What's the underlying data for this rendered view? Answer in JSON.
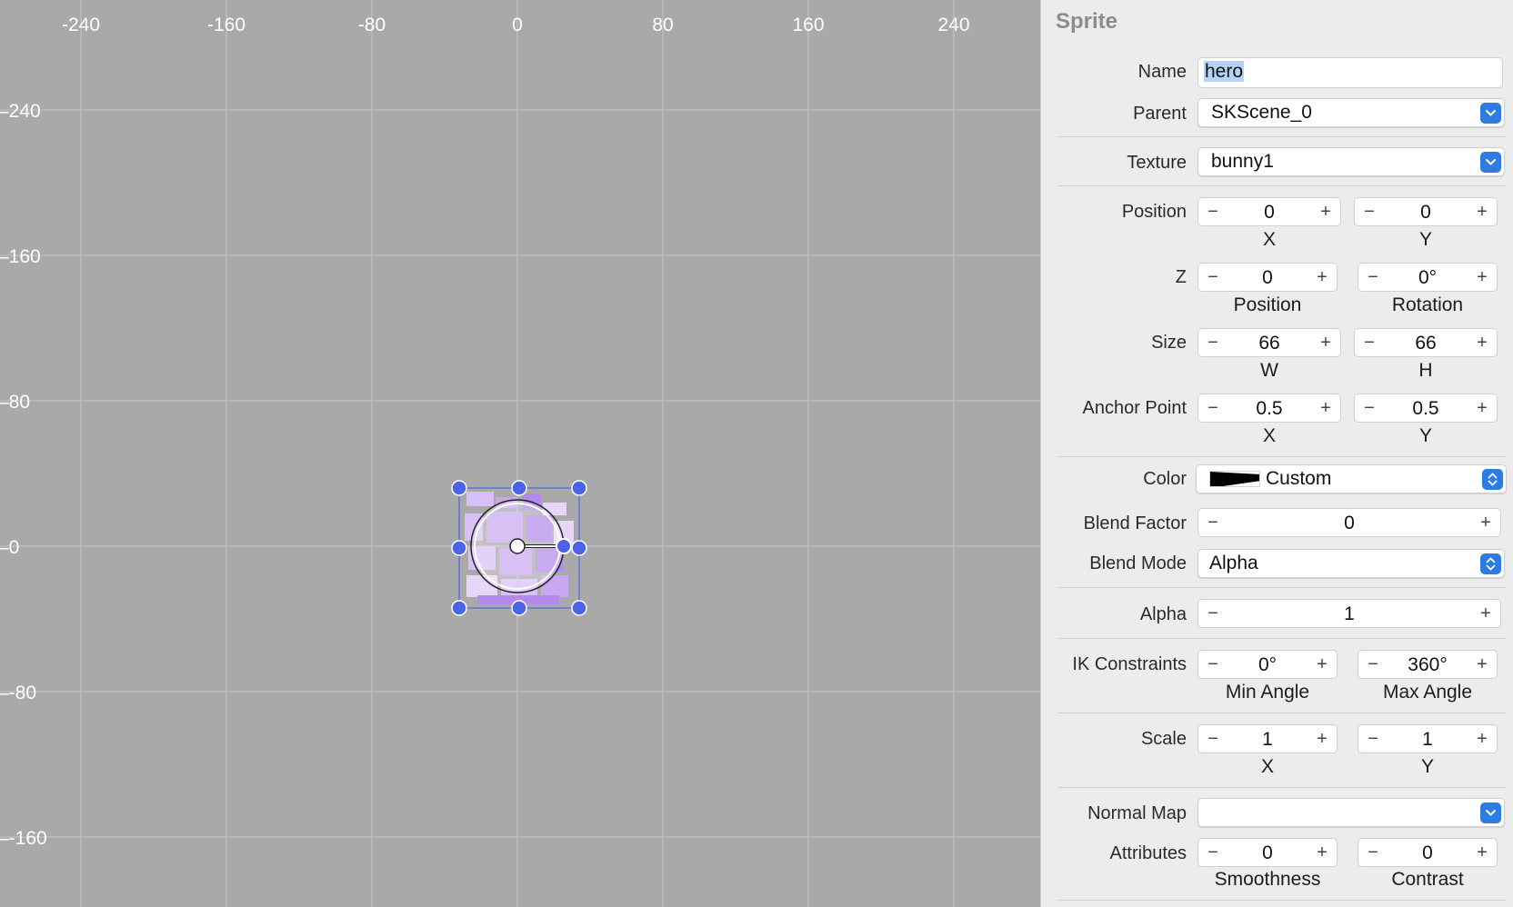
{
  "canvas": {
    "x_ticks": [
      "-240",
      "-160",
      "-80",
      "0",
      "80",
      "160",
      "240"
    ],
    "y_ticks": [
      "240",
      "160",
      "80",
      "0",
      "-80",
      "-160"
    ],
    "sprite_name": "hero"
  },
  "panel": {
    "title": "Sprite",
    "name": {
      "label": "Name",
      "value": "hero"
    },
    "parent": {
      "label": "Parent",
      "value": "SKScene_0"
    },
    "texture": {
      "label": "Texture",
      "value": "bunny1"
    },
    "position": {
      "label": "Position",
      "x": "0",
      "y": "0",
      "x_label": "X",
      "y_label": "Y"
    },
    "z": {
      "label": "Z",
      "position": "0",
      "rotation": "0°",
      "position_label": "Position",
      "rotation_label": "Rotation"
    },
    "size": {
      "label": "Size",
      "w": "66",
      "h": "66",
      "w_label": "W",
      "h_label": "H"
    },
    "anchor": {
      "label": "Anchor Point",
      "x": "0.5",
      "y": "0.5",
      "x_label": "X",
      "y_label": "Y"
    },
    "color": {
      "label": "Color",
      "value": "Custom"
    },
    "blend_factor": {
      "label": "Blend Factor",
      "value": "0"
    },
    "blend_mode": {
      "label": "Blend Mode",
      "value": "Alpha"
    },
    "alpha": {
      "label": "Alpha",
      "value": "1"
    },
    "ik": {
      "label": "IK Constraints",
      "min": "0°",
      "max": "360°",
      "min_label": "Min Angle",
      "max_label": "Max Angle"
    },
    "scale": {
      "label": "Scale",
      "x": "1",
      "y": "1",
      "x_label": "X",
      "y_label": "Y"
    },
    "normal_map": {
      "label": "Normal Map",
      "value": ""
    },
    "attributes": {
      "label": "Attributes",
      "smoothness": "0",
      "contrast": "0",
      "smoothness_label": "Smoothness",
      "contrast_label": "Contrast"
    },
    "minus": "−",
    "plus": "+"
  },
  "colors": {
    "handle": "#4a63e8",
    "accent": "#2d7be3",
    "sprite": "#c9a8f2"
  }
}
